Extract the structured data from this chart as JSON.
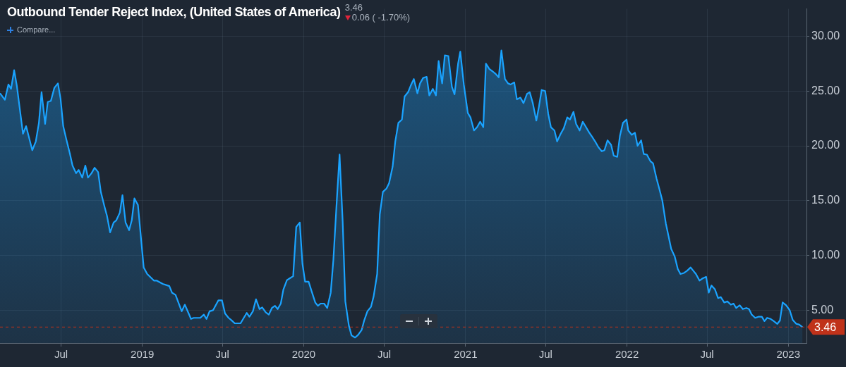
{
  "chart_data": {
    "type": "area",
    "title": "Outbound Tender Reject Index, (United States of America)",
    "annotations": [
      "3.46",
      "0.06 ( -1.70%)",
      "Compare..."
    ],
    "x": [
      "2018-02-13",
      "2018-02-24",
      "2018-03-04",
      "2018-03-10",
      "2018-03-17",
      "2018-03-23",
      "2018-04-06",
      "2018-04-13",
      "2018-04-27",
      "2018-05-05",
      "2018-05-12",
      "2018-05-18",
      "2018-05-26",
      "2018-06-01",
      "2018-06-08",
      "2018-06-16",
      "2018-06-24",
      "2018-06-30",
      "2018-07-06",
      "2018-07-13",
      "2018-07-21",
      "2018-07-27",
      "2018-08-04",
      "2018-08-10",
      "2018-08-18",
      "2018-08-25",
      "2018-08-31",
      "2018-09-08",
      "2018-09-15",
      "2018-09-23",
      "2018-09-29",
      "2018-10-07",
      "2018-10-13",
      "2018-10-20",
      "2018-10-28",
      "2018-11-03",
      "2018-11-11",
      "2018-11-17",
      "2018-11-24",
      "2018-12-02",
      "2018-12-08",
      "2018-12-14",
      "2018-12-22",
      "2019-01-04",
      "2019-01-12",
      "2019-01-27",
      "2019-02-02",
      "2019-02-16",
      "2019-03-03",
      "2019-03-09",
      "2019-03-17",
      "2019-03-31",
      "2019-04-07",
      "2019-04-21",
      "2019-04-27",
      "2019-05-12",
      "2019-05-20",
      "2019-05-26",
      "2019-06-02",
      "2019-06-10",
      "2019-06-22",
      "2019-06-30",
      "2019-07-07",
      "2019-07-15",
      "2019-07-21",
      "2019-07-29",
      "2019-08-11",
      "2019-08-25",
      "2019-08-31",
      "2019-09-08",
      "2019-09-15",
      "2019-09-23",
      "2019-09-29",
      "2019-10-07",
      "2019-10-14",
      "2019-10-21",
      "2019-10-28",
      "2019-11-03",
      "2019-11-10",
      "2019-11-16",
      "2019-11-24",
      "2019-11-30",
      "2019-12-08",
      "2019-12-15",
      "2019-12-23",
      "2019-12-29",
      "2020-01-04",
      "2020-01-12",
      "2020-01-19",
      "2020-01-27",
      "2020-02-02",
      "2020-02-08",
      "2020-02-16",
      "2020-02-23",
      "2020-03-02",
      "2020-03-08",
      "2020-03-16",
      "2020-03-22",
      "2020-03-29",
      "2020-04-04",
      "2020-04-12",
      "2020-04-18",
      "2020-04-26",
      "2020-05-03",
      "2020-05-11",
      "2020-05-17",
      "2020-05-24",
      "2020-06-01",
      "2020-06-07",
      "2020-06-15",
      "2020-06-21",
      "2020-06-28",
      "2020-07-06",
      "2020-07-12",
      "2020-07-20",
      "2020-07-26",
      "2020-08-02",
      "2020-08-10",
      "2020-08-16",
      "2020-08-24",
      "2020-08-31",
      "2020-09-06",
      "2020-09-14",
      "2020-09-20",
      "2020-09-27",
      "2020-10-05",
      "2020-10-11",
      "2020-10-19",
      "2020-10-26",
      "2020-11-01",
      "2020-11-09",
      "2020-11-15",
      "2020-11-23",
      "2020-12-01",
      "2020-12-07",
      "2020-12-15",
      "2020-12-20",
      "2020-12-28",
      "2021-01-06",
      "2021-01-12",
      "2021-01-20",
      "2021-01-27",
      "2021-02-03",
      "2021-02-10",
      "2021-02-16",
      "2021-02-24",
      "2021-03-03",
      "2021-03-09",
      "2021-03-17",
      "2021-03-23",
      "2021-03-31",
      "2021-04-07",
      "2021-04-13",
      "2021-04-21",
      "2021-04-27",
      "2021-05-05",
      "2021-05-12",
      "2021-05-20",
      "2021-05-26",
      "2021-06-02",
      "2021-06-10",
      "2021-06-16",
      "2021-06-22",
      "2021-06-30",
      "2021-07-07",
      "2021-07-13",
      "2021-07-21",
      "2021-07-27",
      "2021-08-04",
      "2021-08-11",
      "2021-08-19",
      "2021-08-25",
      "2021-09-02",
      "2021-09-08",
      "2021-09-16",
      "2021-09-23",
      "2021-09-29",
      "2021-10-07",
      "2021-10-13",
      "2021-10-21",
      "2021-10-28",
      "2021-11-05",
      "2021-11-11",
      "2021-11-18",
      "2021-11-26",
      "2021-12-02",
      "2021-12-10",
      "2021-12-16",
      "2021-12-23",
      "2021-12-31",
      "2022-01-04",
      "2022-01-12",
      "2022-01-19",
      "2022-01-25",
      "2022-02-02",
      "2022-02-08",
      "2022-02-15",
      "2022-02-23",
      "2022-03-01",
      "2022-03-09",
      "2022-03-15",
      "2022-03-22",
      "2022-03-30",
      "2022-04-05",
      "2022-04-11",
      "2022-04-19",
      "2022-04-26",
      "2022-05-02",
      "2022-05-10",
      "2022-05-17",
      "2022-05-25",
      "2022-05-31",
      "2022-06-06",
      "2022-06-14",
      "2022-06-21",
      "2022-06-29",
      "2022-07-05",
      "2022-07-11",
      "2022-07-19",
      "2022-07-26",
      "2022-08-01",
      "2022-08-09",
      "2022-08-16",
      "2022-08-24",
      "2022-08-30",
      "2022-09-05",
      "2022-09-13",
      "2022-09-20",
      "2022-09-28",
      "2022-10-04",
      "2022-10-10",
      "2022-10-18",
      "2022-10-25",
      "2022-11-02",
      "2022-11-08",
      "2022-11-14",
      "2022-11-22",
      "2022-11-29",
      "2022-12-07",
      "2022-12-13",
      "2022-12-19",
      "2022-12-27",
      "2023-01-04",
      "2023-01-11",
      "2023-01-19",
      "2023-01-25",
      "2023-02-02"
    ],
    "series": [
      {
        "color": "#1aa3ff",
        "values": [
          24.8,
          24.2,
          25.6,
          25.2,
          26.9,
          25.5,
          21.1,
          21.8,
          19.6,
          20.4,
          22.1,
          24.9,
          22.0,
          24.0,
          24.1,
          25.3,
          25.7,
          24.3,
          21.8,
          20.6,
          19.3,
          18.2,
          17.5,
          17.8,
          17.1,
          18.2,
          17.1,
          17.5,
          18.0,
          17.6,
          15.8,
          14.5,
          13.6,
          12.1,
          13.0,
          13.2,
          13.9,
          15.5,
          13.0,
          12.3,
          13.2,
          15.2,
          14.6,
          8.9,
          8.3,
          7.7,
          7.7,
          7.4,
          7.2,
          6.6,
          6.4,
          4.9,
          5.5,
          4.2,
          4.3,
          4.3,
          4.6,
          4.2,
          4.9,
          5.0,
          5.9,
          5.9,
          4.7,
          4.3,
          4.1,
          3.8,
          3.8,
          4.75,
          4.4,
          4.9,
          6.0,
          5.1,
          5.25,
          4.8,
          4.6,
          5.2,
          5.4,
          5.1,
          5.6,
          6.9,
          7.75,
          7.9,
          8.1,
          12.6,
          13.0,
          9.25,
          7.6,
          7.6,
          6.7,
          5.7,
          5.4,
          5.6,
          5.6,
          5.2,
          6.6,
          9.6,
          15.2,
          19.2,
          13.1,
          5.8,
          3.6,
          2.7,
          2.5,
          2.75,
          3.2,
          4.1,
          4.9,
          5.3,
          6.25,
          8.3,
          13.75,
          15.8,
          16.1,
          16.6,
          18.1,
          20.4,
          22.1,
          22.4,
          24.5,
          24.9,
          25.6,
          26.1,
          24.8,
          25.7,
          26.2,
          26.3,
          24.6,
          25.2,
          24.6,
          27.75,
          25.7,
          28.25,
          28.2,
          25.4,
          24.7,
          27.5,
          28.6,
          25.6,
          23.0,
          22.6,
          21.4,
          21.7,
          22.2,
          21.7,
          27.5,
          27.0,
          26.8,
          26.6,
          26.25,
          28.7,
          26.1,
          25.7,
          25.6,
          25.8,
          24.25,
          24.4,
          23.9,
          24.75,
          24.9,
          23.9,
          22.3,
          23.6,
          25.1,
          25.0,
          22.9,
          21.7,
          21.4,
          20.4,
          21.1,
          21.6,
          22.6,
          22.4,
          23.1,
          22.0,
          21.4,
          22.2,
          21.8,
          21.25,
          20.9,
          20.4,
          19.9,
          19.5,
          19.6,
          20.5,
          20.1,
          19.1,
          19.0,
          20.9,
          22.1,
          22.4,
          21.4,
          21.0,
          21.2,
          20.0,
          20.5,
          19.25,
          19.2,
          18.6,
          18.4,
          17.0,
          16.1,
          15.0,
          12.9,
          11.75,
          10.6,
          9.9,
          8.75,
          8.3,
          8.4,
          8.6,
          8.9,
          8.6,
          8.3,
          7.7,
          7.9,
          8.05,
          6.6,
          7.25,
          6.9,
          6.1,
          6.2,
          5.7,
          5.8,
          5.5,
          5.6,
          5.2,
          5.45,
          5.1,
          5.2,
          5.1,
          4.6,
          4.3,
          4.4,
          4.4,
          4.0,
          4.3,
          4.2,
          4.0,
          3.75,
          4.06,
          5.7,
          5.45,
          5.0,
          4.1,
          3.75,
          3.7,
          3.46
        ]
      }
    ],
    "xlim": [
      "2018-02-13",
      "2023-02-11"
    ],
    "xticks": [
      {
        "value": "2018-07-01",
        "label": "Jul"
      },
      {
        "value": "2019-01-01",
        "label": "2019"
      },
      {
        "value": "2019-07-01",
        "label": "Jul"
      },
      {
        "value": "2020-01-01",
        "label": "2020"
      },
      {
        "value": "2020-07-01",
        "label": "Jul"
      },
      {
        "value": "2021-01-01",
        "label": "2021"
      },
      {
        "value": "2021-07-01",
        "label": "Jul"
      },
      {
        "value": "2022-01-01",
        "label": "2022"
      },
      {
        "value": "2022-07-01",
        "label": "Jul"
      },
      {
        "value": "2023-01-01",
        "label": "2023"
      }
    ],
    "ylim": [
      2,
      32.5
    ],
    "yticks": [
      {
        "value": 5,
        "label": "5.00"
      },
      {
        "value": 10,
        "label": "10.00"
      },
      {
        "value": 15,
        "label": "15.00"
      },
      {
        "value": 20,
        "label": "20.00"
      },
      {
        "value": 25,
        "label": "25.00"
      },
      {
        "value": 30,
        "label": "30.00"
      }
    ],
    "grid": true,
    "legend": false,
    "line_style": "solid",
    "ref_lines": [
      {
        "axis": "y",
        "value": 3.46,
        "label": "3.46",
        "color": "#c0321a",
        "line_style": "dashed"
      }
    ]
  }
}
